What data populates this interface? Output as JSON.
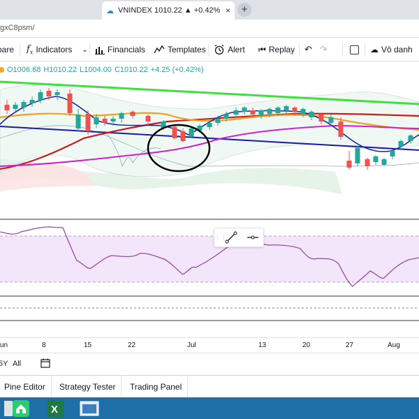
{
  "browser": {
    "tab_title": "VNINDEX 1010.22 ▲ +0.42% Vô",
    "tab_close": "×",
    "new_tab": "+",
    "url_fragment": "gxC8psm/"
  },
  "toolbar": {
    "compare_label": "pare",
    "indicators_label": "Indicators",
    "financials_label": "Financials",
    "templates_label": "Templates",
    "alert_label": "Alert",
    "replay_label": "Replay",
    "layout_label": "Vô danh"
  },
  "ohlc": {
    "o": "O1006.68",
    "h": "H1010.22",
    "l": "L1004.00",
    "c": "C1010.22",
    "change": "+4.25 (+0.42%)"
  },
  "timeaxis": {
    "labels": [
      "un",
      "8",
      "15",
      "22",
      "Jul",
      "13",
      "20",
      "27",
      "Aug"
    ]
  },
  "range": {
    "first": "5Y",
    "all": "All"
  },
  "bottom_tabs": [
    "Pine Editor",
    "Strategy Tester",
    "Trading Panel"
  ],
  "colors": {
    "up": "#26a69a",
    "down": "#ef5350",
    "green_line": "#3ee03e",
    "blue_line": "#1a1aa6",
    "red_line": "#c81e1e",
    "magenta_line": "#d020d0",
    "orange_line": "#f0a020",
    "rsi_line": "#9a4aa6",
    "rsi_band": "#f3e6fb",
    "taskbar": "#1e6fa8"
  },
  "icons": [
    "cloud-icon",
    "fx-icon",
    "bars-icon",
    "templates-icon",
    "alarm-icon",
    "replay-icon",
    "undo-icon",
    "redo-icon",
    "checkbox-icon",
    "cloud-layout-icon",
    "line-tool-icon",
    "horizontal-line-icon",
    "calendar-icon"
  ]
}
